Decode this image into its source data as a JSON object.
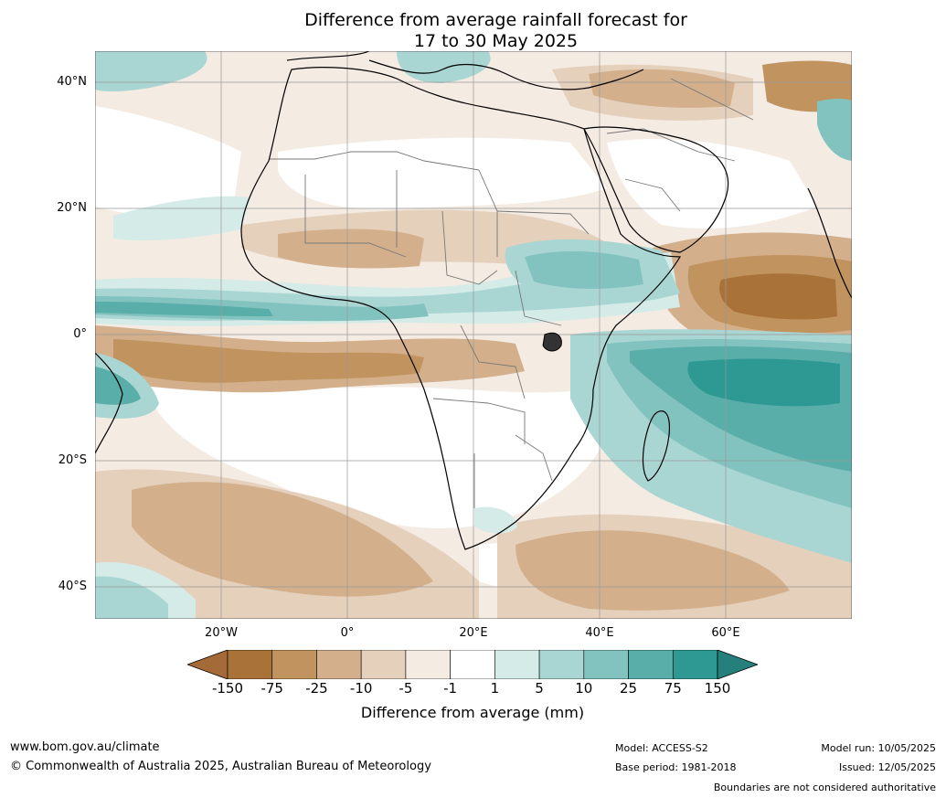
{
  "title": {
    "line1": "Difference from average rainfall forecast for",
    "line2": "17 to 30 May 2025"
  },
  "map": {
    "region": "Africa",
    "lat_labels": [
      "40°N",
      "20°N",
      "0°",
      "20°S",
      "40°S"
    ],
    "lon_labels": [
      "20°W",
      "0°",
      "20°E",
      "40°E",
      "60°E"
    ]
  },
  "colorbar": {
    "ticks": [
      "-150",
      "-75",
      "-25",
      "-10",
      "-5",
      "-1",
      "1",
      "5",
      "10",
      "25",
      "75",
      "150"
    ],
    "colors": [
      "#a46b38",
      "#a97239",
      "#c0935f",
      "#d3b08b",
      "#e5d0bc",
      "#f4ebe3",
      "#ffffff",
      "#d5ebe8",
      "#a9d6d3",
      "#82c2bf",
      "#5aaeaa",
      "#2e9893",
      "#25807b"
    ],
    "label": "Difference from average (mm)"
  },
  "footer": {
    "website": "www.bom.gov.au/climate",
    "copyright": "© Commonwealth of Australia 2025, Australian Bureau of Meteorology",
    "model": "Model: ACCESS-S2",
    "base_period": "Base period: 1981-2018",
    "model_run": "Model run: 10/05/2025",
    "issued": "Issued: 12/05/2025",
    "disclaimer": "Boundaries are not considered authoritative"
  }
}
